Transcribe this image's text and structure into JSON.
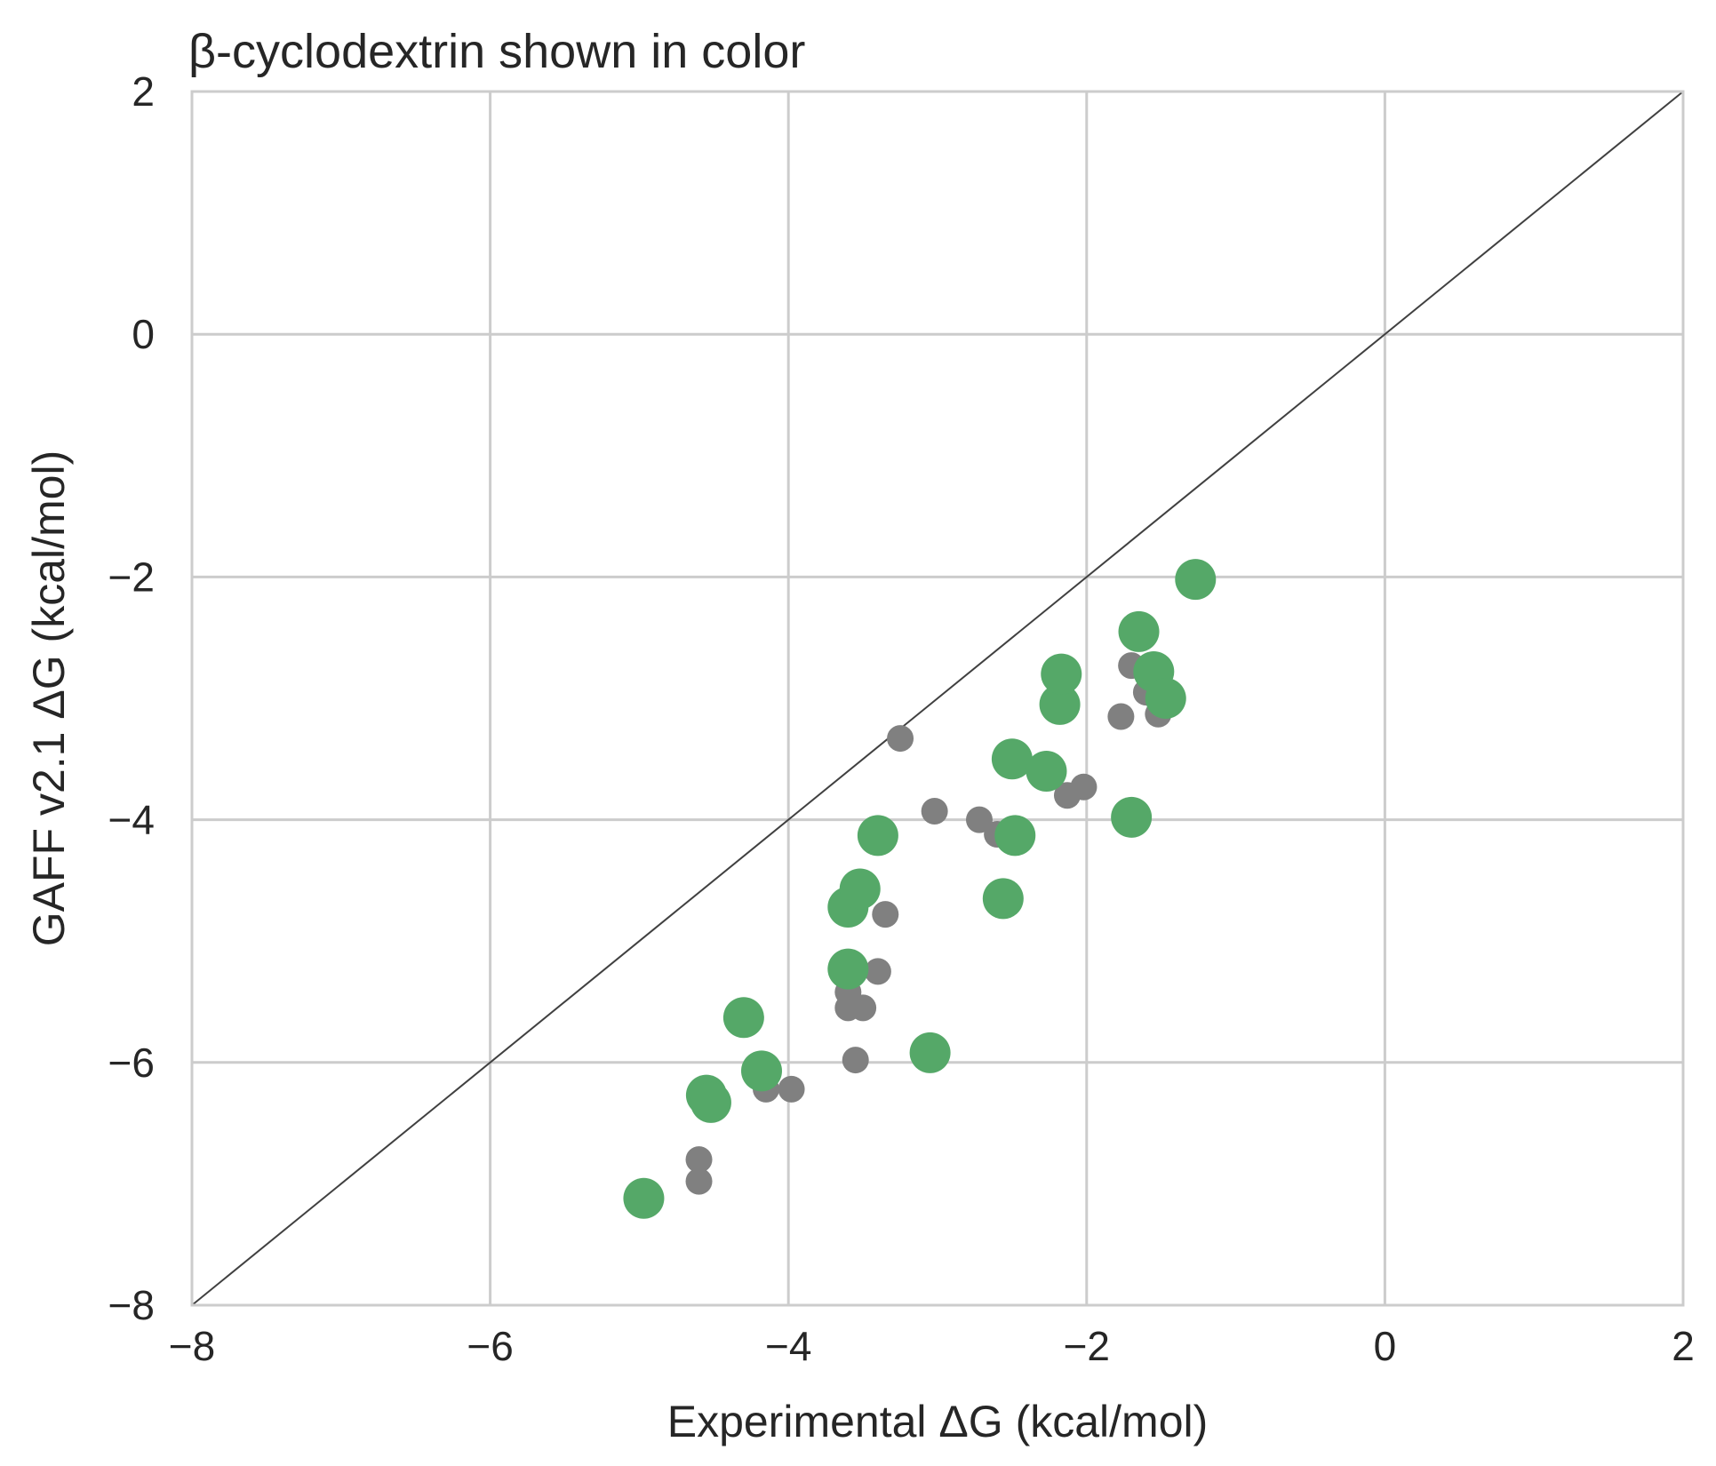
{
  "chart_data": {
    "type": "scatter",
    "title": "β-cyclodextrin shown in color",
    "xlabel": "Experimental ΔG (kcal/mol)",
    "ylabel": "GAFF v2.1 ΔG (kcal/mol)",
    "xlim": [
      -8,
      2
    ],
    "ylim": [
      -8,
      2
    ],
    "xticks": [
      -8,
      -6,
      -4,
      -2,
      0,
      2
    ],
    "yticks": [
      -8,
      -6,
      -4,
      -2,
      0,
      2
    ],
    "xtick_labels": [
      "−8",
      "−6",
      "−4",
      "−2",
      "0",
      "2"
    ],
    "ytick_labels": [
      "−8",
      "−6",
      "−4",
      "−2",
      "0",
      "2"
    ],
    "grid": true,
    "reference_line": {
      "from": [
        -8,
        -8
      ],
      "to": [
        2,
        2
      ],
      "color": "#404040"
    },
    "series": [
      {
        "color": "#808080",
        "size": "small",
        "points": [
          {
            "x": -4.6,
            "y": -6.8
          },
          {
            "x": -4.6,
            "y": -6.98
          },
          {
            "x": -4.15,
            "y": -6.22
          },
          {
            "x": -3.98,
            "y": -6.22
          },
          {
            "x": -3.55,
            "y": -5.98
          },
          {
            "x": -3.6,
            "y": -5.55
          },
          {
            "x": -3.5,
            "y": -5.55
          },
          {
            "x": -3.6,
            "y": -5.42
          },
          {
            "x": -3.4,
            "y": -5.25
          },
          {
            "x": -3.35,
            "y": -4.78
          },
          {
            "x": -3.25,
            "y": -3.33
          },
          {
            "x": -3.02,
            "y": -3.93
          },
          {
            "x": -2.72,
            "y": -4.0
          },
          {
            "x": -2.6,
            "y": -4.12
          },
          {
            "x": -2.13,
            "y": -3.8
          },
          {
            "x": -2.02,
            "y": -3.73
          },
          {
            "x": -1.77,
            "y": -3.15
          },
          {
            "x": -1.7,
            "y": -2.73
          },
          {
            "x": -1.6,
            "y": -2.95
          },
          {
            "x": -1.52,
            "y": -3.13
          }
        ]
      },
      {
        "color": "#55a868",
        "size": "large",
        "points": [
          {
            "x": -4.97,
            "y": -7.12
          },
          {
            "x": -4.55,
            "y": -6.27
          },
          {
            "x": -4.52,
            "y": -6.33
          },
          {
            "x": -4.3,
            "y": -5.63
          },
          {
            "x": -4.18,
            "y": -6.07
          },
          {
            "x": -3.6,
            "y": -5.23
          },
          {
            "x": -3.6,
            "y": -4.72
          },
          {
            "x": -3.52,
            "y": -4.57
          },
          {
            "x": -3.4,
            "y": -4.13
          },
          {
            "x": -3.05,
            "y": -5.92
          },
          {
            "x": -2.56,
            "y": -4.65
          },
          {
            "x": -2.5,
            "y": -3.5
          },
          {
            "x": -2.48,
            "y": -4.13
          },
          {
            "x": -2.27,
            "y": -3.6
          },
          {
            "x": -2.18,
            "y": -3.05
          },
          {
            "x": -2.17,
            "y": -2.8
          },
          {
            "x": -1.7,
            "y": -3.98
          },
          {
            "x": -1.65,
            "y": -2.45
          },
          {
            "x": -1.55,
            "y": -2.78
          },
          {
            "x": -1.47,
            "y": -3.0
          },
          {
            "x": -1.27,
            "y": -2.02
          }
        ]
      }
    ]
  }
}
